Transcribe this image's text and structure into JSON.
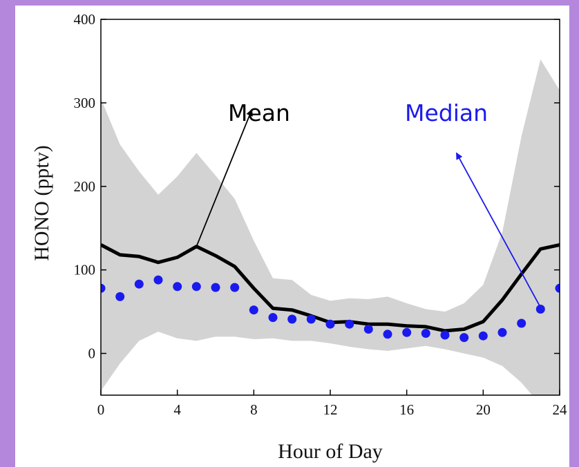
{
  "chart_data": {
    "type": "line",
    "xlabel": "Hour of Day",
    "ylabel": "HONO (pptv)",
    "xlim": [
      0,
      24
    ],
    "ylim": [
      -50,
      400
    ],
    "xticks": [
      0,
      4,
      8,
      12,
      16,
      20,
      24
    ],
    "yticks": [
      0,
      100,
      200,
      300,
      400
    ],
    "grid": false,
    "series": [
      {
        "name": "Mean",
        "kind": "line",
        "color": "#000000",
        "x": [
          0,
          1,
          2,
          3,
          4,
          5,
          6,
          7,
          8,
          9,
          10,
          11,
          12,
          13,
          14,
          15,
          16,
          17,
          18,
          19,
          20,
          21,
          22,
          23,
          24
        ],
        "values": [
          130,
          118,
          116,
          109,
          115,
          128,
          117,
          104,
          78,
          54,
          52,
          45,
          37,
          38,
          35,
          35,
          33,
          32,
          27,
          29,
          38,
          64,
          95,
          125,
          130
        ]
      },
      {
        "name": "Median",
        "kind": "scatter",
        "color": "#1a1aee",
        "x": [
          0,
          1,
          2,
          3,
          4,
          5,
          6,
          7,
          8,
          9,
          10,
          11,
          12,
          13,
          14,
          15,
          16,
          17,
          18,
          19,
          20,
          21,
          22,
          23,
          24
        ],
        "values": [
          78,
          68,
          83,
          88,
          80,
          80,
          79,
          79,
          52,
          43,
          41,
          41,
          35,
          35,
          29,
          23,
          25,
          24,
          22,
          19,
          21,
          25,
          36,
          53,
          78
        ]
      }
    ],
    "range_band": {
      "color": "#d3d3d3",
      "x": [
        0,
        1,
        2,
        3,
        4,
        5,
        6,
        7,
        8,
        9,
        10,
        11,
        12,
        13,
        14,
        15,
        16,
        17,
        18,
        19,
        20,
        21,
        22,
        23,
        24
      ],
      "upper": [
        305,
        250,
        218,
        190,
        212,
        240,
        213,
        185,
        135,
        90,
        88,
        70,
        63,
        66,
        65,
        68,
        60,
        53,
        50,
        60,
        82,
        145,
        260,
        352,
        315
      ],
      "lower": [
        -45,
        -12,
        15,
        26,
        18,
        15,
        20,
        20,
        17,
        18,
        15,
        15,
        12,
        8,
        5,
        3,
        6,
        9,
        5,
        0,
        -5,
        -15,
        -35,
        -62,
        -75
      ]
    },
    "annotations": [
      {
        "text": "Mean",
        "color": "#000000",
        "arrow_from": [
          5,
          128
        ],
        "arrow_to": [
          7.9,
          292
        ]
      },
      {
        "text": "Median",
        "color": "#1a1aee",
        "arrow_from": [
          23,
          55
        ],
        "arrow_to": [
          18.6,
          240
        ]
      }
    ]
  }
}
